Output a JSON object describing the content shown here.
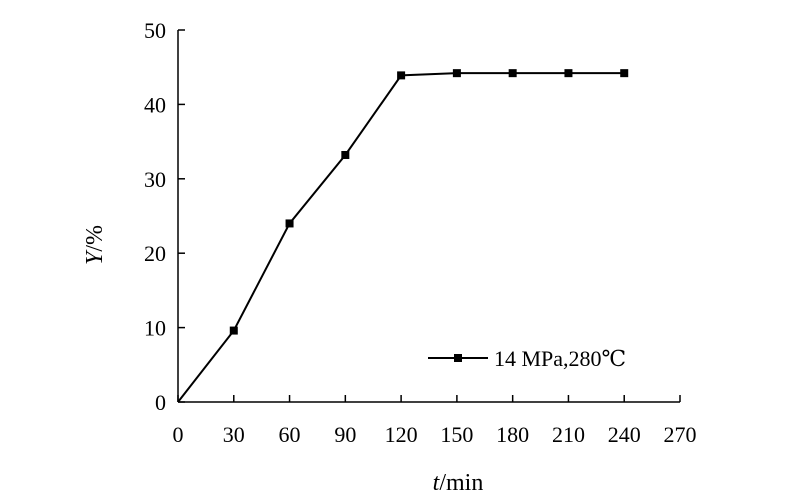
{
  "chart_data": {
    "type": "line",
    "xlabel": {
      "var": "t",
      "unit": "/min"
    },
    "ylabel": {
      "var": "Y",
      "unit": "/%"
    },
    "xlim": [
      0,
      270
    ],
    "ylim": [
      0,
      50
    ],
    "xticks": [
      0,
      30,
      60,
      90,
      120,
      150,
      180,
      210,
      240,
      270
    ],
    "yticks": [
      0,
      10,
      20,
      30,
      40,
      50
    ],
    "grid": false,
    "legend_position": "bottom-right",
    "series": [
      {
        "name": "14 MPa,280℃",
        "marker": "square",
        "color": "#000000",
        "x": [
          0,
          30,
          60,
          90,
          120,
          150,
          180,
          210,
          240
        ],
        "y": [
          0,
          9.6,
          24.0,
          33.2,
          43.9,
          44.2,
          44.2,
          44.2,
          44.2
        ]
      }
    ]
  }
}
